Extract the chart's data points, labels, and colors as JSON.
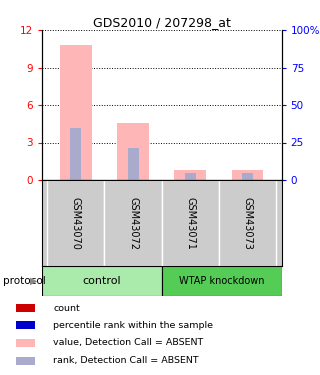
{
  "title": "GDS2010 / 207298_at",
  "samples": [
    "GSM43070",
    "GSM43072",
    "GSM43071",
    "GSM43073"
  ],
  "bar_pink_values": [
    10.8,
    4.6,
    0.8,
    0.8
  ],
  "bar_blue_values": [
    4.2,
    2.6,
    0.55,
    0.55
  ],
  "bar_pink_color": "#FFB6B6",
  "bar_blue_color": "#AAAACC",
  "bar_red_color": "#CC0000",
  "bar_dark_blue_color": "#0000CC",
  "ylim_left": [
    0,
    12
  ],
  "ylim_right": [
    0,
    100
  ],
  "yticks_left": [
    0,
    3,
    6,
    9,
    12
  ],
  "yticks_right": [
    0,
    25,
    50,
    75,
    100
  ],
  "ytick_labels_right": [
    "0",
    "25",
    "50",
    "75",
    "100%"
  ],
  "group_label_1": "control",
  "group_label_2": "WTAP knockdown",
  "group_color_1": "#AAEAAA",
  "group_color_2": "#55CC55",
  "sample_bg_color": "#CCCCCC",
  "protocol_label": "protocol",
  "legend_items": [
    {
      "color": "#CC0000",
      "label": "count"
    },
    {
      "color": "#0000CC",
      "label": "percentile rank within the sample"
    },
    {
      "color": "#FFB6B6",
      "label": "value, Detection Call = ABSENT"
    },
    {
      "color": "#AAAACC",
      "label": "rank, Detection Call = ABSENT"
    }
  ],
  "background_color": "#ffffff"
}
